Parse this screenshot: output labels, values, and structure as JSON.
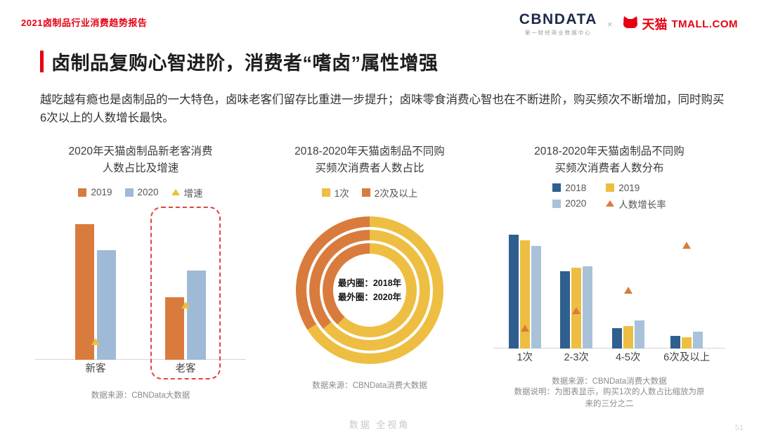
{
  "header": {
    "report_title": "2021卤制品行业消费趋势报告",
    "cbndata_logo": "CBNDATA",
    "cbndata_sub": "第一财经商业数据中心",
    "separator": "×",
    "tmall_cn": "天猫",
    "tmall_en": "TMALL.COM"
  },
  "slide": {
    "title": "卤制品复购心智进阶，消费者“嗜卤”属性增强",
    "body": "越吃越有瘾也是卤制品的一大特色，卤味老客们留存比重进一步提升；卤味零食消费心智也在不断进阶，购买频次不断增加，同时购买6次以上的人数增长最快。",
    "watermark": "数据 全视角",
    "page_number": "51"
  },
  "colors": {
    "accent_red": "#E60012",
    "highlight_red": "#E5433C",
    "orange": "#D97B3D",
    "yellow": "#EDBE41",
    "light_blue": "#9FBAD6",
    "light_blue_2020": "#A9C1D9",
    "dark_blue": "#2E5F8F",
    "axis_gray": "#d5d5d5"
  },
  "chart_data": [
    {
      "id": "new-old-customers",
      "type": "bar",
      "title_lines": [
        "2020年天猫卤制品新老客消费",
        "人数占比及增速"
      ],
      "categories": [
        "新客",
        "老客"
      ],
      "units": "relative (value axis unlabeled in source)",
      "ylim": [
        0,
        110
      ],
      "series": [
        {
          "name": "2019",
          "color_key": "orange",
          "values": [
            100,
            46
          ]
        },
        {
          "name": "2020",
          "color_key": "light_blue",
          "values": [
            81,
            66
          ]
        }
      ],
      "growth_series": {
        "name": "增速",
        "marker": "triangle",
        "color_key": "yellow",
        "values": [
          11,
          38
        ]
      },
      "highlight": "老客",
      "source": "数据来源：CBNData大数据"
    },
    {
      "id": "purchase-frequency-share",
      "type": "donut",
      "title_lines": [
        "2018-2020年天猫卤制品不同购",
        "买频次消费者人数占比"
      ],
      "legend": [
        {
          "label": "1次",
          "color_key": "yellow"
        },
        {
          "label": "2次及以上",
          "color_key": "orange"
        }
      ],
      "rings": [
        {
          "year": "2018",
          "position": "inner",
          "one_time_pct": 62,
          "repeat_pct": 38
        },
        {
          "year": "2019",
          "position": "middle",
          "one_time_pct": 64,
          "repeat_pct": 36
        },
        {
          "year": "2020",
          "position": "outer",
          "one_time_pct": 66,
          "repeat_pct": 34
        }
      ],
      "center_lines": [
        "最内圈：2018年",
        "最外圈：2020年"
      ],
      "source": "数据来源：CBNData消费大数据"
    },
    {
      "id": "purchase-frequency-distribution",
      "type": "bar",
      "title_lines": [
        "2018-2020年天猫卤制品不同购",
        "买频次消费者人数分布"
      ],
      "categories": [
        "1次",
        "2-3次",
        "4-5次",
        "6次及以上"
      ],
      "units": "relative (value axis unlabeled in source)",
      "ylim": [
        0,
        110
      ],
      "series": [
        {
          "name": "2018",
          "color_key": "dark_blue",
          "values": [
            100,
            68,
            18,
            11
          ]
        },
        {
          "name": "2019",
          "color_key": "yellow",
          "values": [
            95,
            71,
            20,
            10
          ]
        },
        {
          "name": "2020",
          "color_key": "light_blue_2020",
          "values": [
            90,
            72,
            25,
            15
          ]
        }
      ],
      "growth_series": {
        "name": "人数增长率",
        "marker": "triangle",
        "color_key": "orange",
        "values": [
          15,
          30,
          48,
          88
        ]
      },
      "source": "数据来源：CBNData消费大数据",
      "note_lines": [
        "数据说明：为图表显示，购买1次的人数占比缩放为原",
        "来的三分之二"
      ]
    }
  ]
}
